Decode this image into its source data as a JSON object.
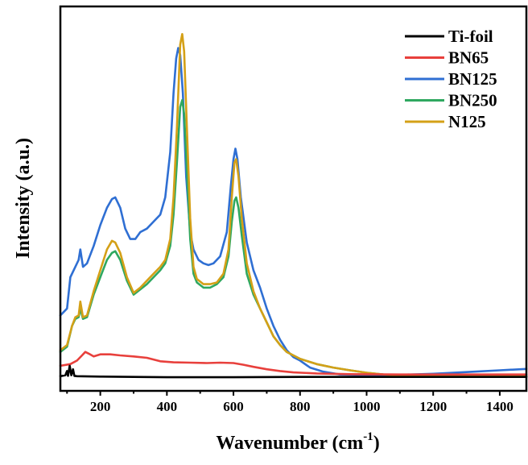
{
  "chart_data": {
    "type": "line",
    "xlabel": "Wavenumber (cm",
    "xlabel_sup": "-1",
    "xlabel_close": ")",
    "ylabel": "Intensity (a.u.)",
    "xlim": [
      80,
      1480
    ],
    "ylim": [
      0,
      100
    ],
    "x_ticks": [
      200,
      400,
      600,
      800,
      1000,
      1200,
      1400
    ],
    "y_ticks_shown": false,
    "grid": false,
    "legend_position": "top-right",
    "series": [
      {
        "name": "Ti-foil",
        "color": "#000000",
        "points": [
          [
            80,
            0.5
          ],
          [
            95,
            0.8
          ],
          [
            100,
            2
          ],
          [
            103,
            0.6
          ],
          [
            108,
            3.5
          ],
          [
            113,
            0.8
          ],
          [
            118,
            2.5
          ],
          [
            122,
            0.6
          ],
          [
            130,
            0.5
          ],
          [
            200,
            0.4
          ],
          [
            300,
            0.3
          ],
          [
            400,
            0.2
          ],
          [
            600,
            0.2
          ],
          [
            800,
            0.3
          ],
          [
            1000,
            0.3
          ],
          [
            1200,
            0.3
          ],
          [
            1480,
            0.3
          ]
        ]
      },
      {
        "name": "BN65",
        "color": "#e8403c",
        "points": [
          [
            80,
            3.5
          ],
          [
            110,
            4
          ],
          [
            130,
            5
          ],
          [
            145,
            6.5
          ],
          [
            155,
            7.5
          ],
          [
            165,
            7
          ],
          [
            180,
            6.2
          ],
          [
            200,
            6.8
          ],
          [
            230,
            6.8
          ],
          [
            260,
            6.5
          ],
          [
            300,
            6.2
          ],
          [
            340,
            5.8
          ],
          [
            380,
            4.8
          ],
          [
            420,
            4.5
          ],
          [
            470,
            4.4
          ],
          [
            520,
            4.3
          ],
          [
            560,
            4.4
          ],
          [
            600,
            4.3
          ],
          [
            630,
            3.8
          ],
          [
            660,
            3.2
          ],
          [
            700,
            2.5
          ],
          [
            740,
            2
          ],
          [
            780,
            1.6
          ],
          [
            850,
            1.3
          ],
          [
            950,
            1.1
          ],
          [
            1100,
            1
          ],
          [
            1300,
            1
          ],
          [
            1480,
            1
          ]
        ]
      },
      {
        "name": "BN125",
        "color": "#2f6fd3",
        "points": [
          [
            80,
            18
          ],
          [
            100,
            20
          ],
          [
            110,
            29
          ],
          [
            125,
            32
          ],
          [
            135,
            34
          ],
          [
            140,
            37
          ],
          [
            148,
            32
          ],
          [
            160,
            33
          ],
          [
            180,
            38
          ],
          [
            200,
            44
          ],
          [
            220,
            49
          ],
          [
            235,
            51.5
          ],
          [
            245,
            52
          ],
          [
            260,
            49
          ],
          [
            275,
            43
          ],
          [
            290,
            40
          ],
          [
            305,
            40
          ],
          [
            320,
            42
          ],
          [
            340,
            43
          ],
          [
            360,
            45
          ],
          [
            380,
            47
          ],
          [
            395,
            52
          ],
          [
            410,
            65
          ],
          [
            420,
            82
          ],
          [
            428,
            92
          ],
          [
            434,
            95
          ],
          [
            440,
            93
          ],
          [
            448,
            82
          ],
          [
            458,
            58
          ],
          [
            470,
            42
          ],
          [
            480,
            37
          ],
          [
            495,
            34
          ],
          [
            510,
            33
          ],
          [
            525,
            32.5
          ],
          [
            540,
            33
          ],
          [
            560,
            35
          ],
          [
            580,
            42
          ],
          [
            592,
            55
          ],
          [
            600,
            63
          ],
          [
            606,
            66
          ],
          [
            612,
            63
          ],
          [
            622,
            52
          ],
          [
            640,
            39
          ],
          [
            660,
            31
          ],
          [
            680,
            26
          ],
          [
            700,
            20
          ],
          [
            720,
            15
          ],
          [
            740,
            11
          ],
          [
            760,
            8
          ],
          [
            780,
            6
          ],
          [
            800,
            5
          ],
          [
            830,
            3
          ],
          [
            870,
            1.8
          ],
          [
            920,
            1
          ],
          [
            1000,
            0.8
          ],
          [
            1100,
            0.9
          ],
          [
            1200,
            1.2
          ],
          [
            1300,
            1.7
          ],
          [
            1400,
            2.2
          ],
          [
            1480,
            2.6
          ]
        ]
      },
      {
        "name": "BN250",
        "color": "#2fa860",
        "points": [
          [
            80,
            7.5
          ],
          [
            100,
            9
          ],
          [
            115,
            15
          ],
          [
            125,
            17
          ],
          [
            135,
            17.5
          ],
          [
            140,
            20
          ],
          [
            148,
            17
          ],
          [
            160,
            17.5
          ],
          [
            180,
            24
          ],
          [
            200,
            29
          ],
          [
            220,
            34
          ],
          [
            235,
            36
          ],
          [
            245,
            36.5
          ],
          [
            260,
            34
          ],
          [
            280,
            28
          ],
          [
            300,
            24
          ],
          [
            320,
            25.5
          ],
          [
            340,
            27
          ],
          [
            360,
            29
          ],
          [
            380,
            31
          ],
          [
            395,
            33
          ],
          [
            410,
            38
          ],
          [
            420,
            47
          ],
          [
            430,
            62
          ],
          [
            440,
            78
          ],
          [
            446,
            80
          ],
          [
            452,
            76
          ],
          [
            460,
            60
          ],
          [
            470,
            40
          ],
          [
            480,
            30
          ],
          [
            490,
            27.5
          ],
          [
            510,
            26
          ],
          [
            530,
            26
          ],
          [
            550,
            27
          ],
          [
            570,
            29
          ],
          [
            585,
            35
          ],
          [
            595,
            45
          ],
          [
            603,
            51
          ],
          [
            608,
            52
          ],
          [
            615,
            49
          ],
          [
            625,
            41
          ],
          [
            640,
            30
          ],
          [
            660,
            24
          ],
          [
            680,
            20
          ],
          [
            700,
            16
          ],
          [
            720,
            12
          ],
          [
            740,
            9.5
          ],
          [
            760,
            7.5
          ],
          [
            780,
            6.5
          ],
          [
            800,
            5.5
          ],
          [
            850,
            4
          ],
          [
            900,
            3
          ],
          [
            950,
            2.2
          ],
          [
            1000,
            1.5
          ],
          [
            1050,
            1
          ],
          [
            1100,
            0.8
          ],
          [
            1200,
            0.5
          ],
          [
            1300,
            0.4
          ],
          [
            1480,
            0.5
          ]
        ]
      },
      {
        "name": "N125",
        "color": "#d4a017",
        "points": [
          [
            80,
            8
          ],
          [
            100,
            9.5
          ],
          [
            115,
            15
          ],
          [
            125,
            17.5
          ],
          [
            135,
            18
          ],
          [
            140,
            22
          ],
          [
            148,
            17.5
          ],
          [
            160,
            18
          ],
          [
            180,
            25
          ],
          [
            200,
            31
          ],
          [
            220,
            37
          ],
          [
            235,
            39.5
          ],
          [
            245,
            39
          ],
          [
            260,
            36
          ],
          [
            280,
            29
          ],
          [
            300,
            24.5
          ],
          [
            320,
            26
          ],
          [
            340,
            28
          ],
          [
            360,
            30
          ],
          [
            380,
            32
          ],
          [
            395,
            34
          ],
          [
            410,
            40
          ],
          [
            420,
            52
          ],
          [
            430,
            72
          ],
          [
            440,
            96
          ],
          [
            446,
            99
          ],
          [
            452,
            94
          ],
          [
            460,
            72
          ],
          [
            470,
            46
          ],
          [
            480,
            32
          ],
          [
            490,
            28.5
          ],
          [
            510,
            27
          ],
          [
            530,
            27
          ],
          [
            550,
            27.5
          ],
          [
            570,
            30
          ],
          [
            585,
            37
          ],
          [
            595,
            52
          ],
          [
            603,
            62
          ],
          [
            608,
            63
          ],
          [
            615,
            58
          ],
          [
            625,
            46
          ],
          [
            640,
            33
          ],
          [
            660,
            25
          ],
          [
            680,
            20
          ],
          [
            700,
            16
          ],
          [
            720,
            12
          ],
          [
            740,
            9.5
          ],
          [
            760,
            7.5
          ],
          [
            780,
            6.5
          ],
          [
            800,
            5.5
          ],
          [
            850,
            4
          ],
          [
            900,
            3
          ],
          [
            950,
            2.2
          ],
          [
            1000,
            1.5
          ],
          [
            1050,
            1
          ],
          [
            1100,
            0.8
          ],
          [
            1200,
            0.5
          ],
          [
            1300,
            0.4
          ],
          [
            1480,
            0.5
          ]
        ]
      }
    ]
  }
}
